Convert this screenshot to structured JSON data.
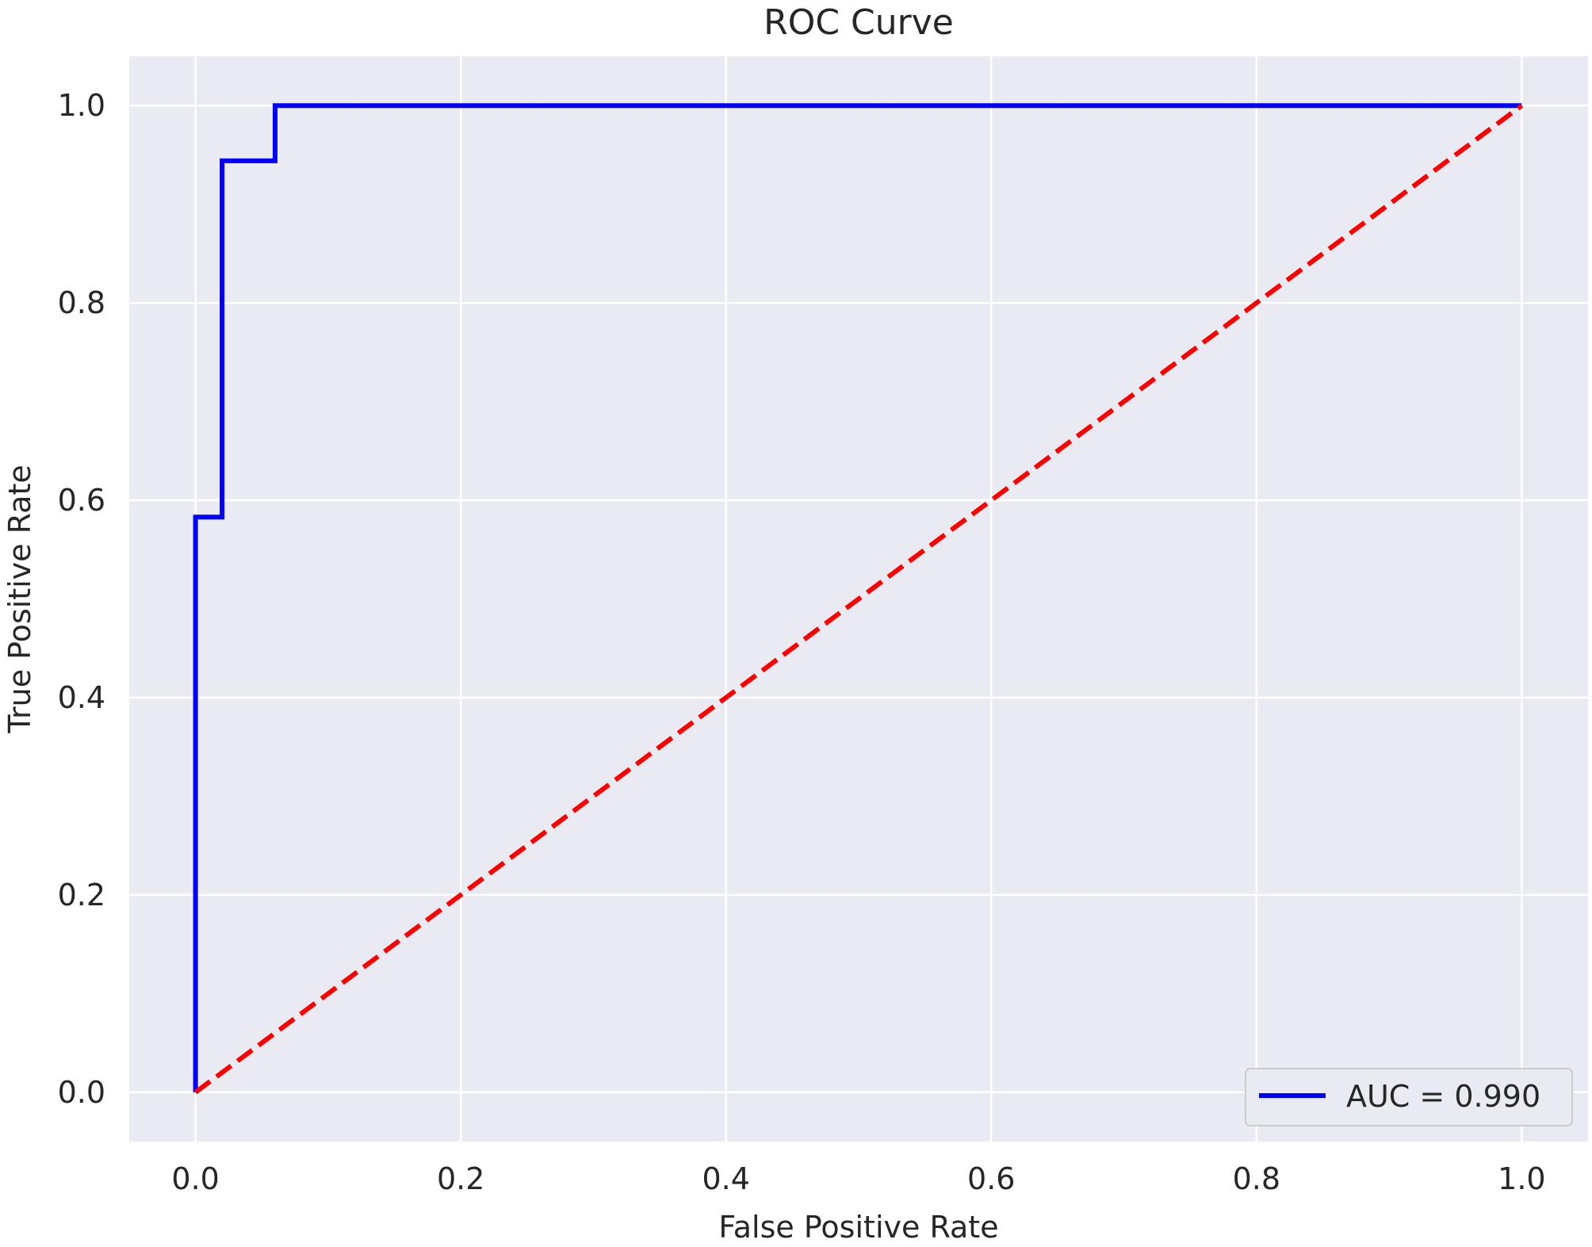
{
  "chart_data": {
    "type": "line",
    "title": "ROC Curve",
    "xlabel": "False Positive Rate",
    "ylabel": "True Positive Rate",
    "xlim": [
      -0.05,
      1.05
    ],
    "ylim": [
      -0.05,
      1.05
    ],
    "xticks": [
      0.0,
      0.2,
      0.4,
      0.6,
      0.8,
      1.0
    ],
    "yticks": [
      0.0,
      0.2,
      0.4,
      0.6,
      0.8,
      1.0
    ],
    "xtick_labels": [
      "0.0",
      "0.2",
      "0.4",
      "0.6",
      "0.8",
      "1.0"
    ],
    "ytick_labels": [
      "0.0",
      "0.2",
      "0.4",
      "0.6",
      "0.8",
      "1.0"
    ],
    "grid": true,
    "background_color": "#eaeaf2",
    "legend_position": "lower right",
    "series": [
      {
        "name": "AUC = 0.990",
        "color": "#0000ff",
        "style": "solid",
        "x": [
          0.0,
          0.0,
          0.02,
          0.02,
          0.06,
          0.06,
          1.0
        ],
        "y": [
          0.0,
          0.583,
          0.583,
          0.944,
          0.944,
          1.0,
          1.0
        ]
      },
      {
        "color": "#ff0000",
        "style": "dashed",
        "x": [
          0.0,
          1.0
        ],
        "y": [
          0.0,
          1.0
        ]
      }
    ]
  }
}
